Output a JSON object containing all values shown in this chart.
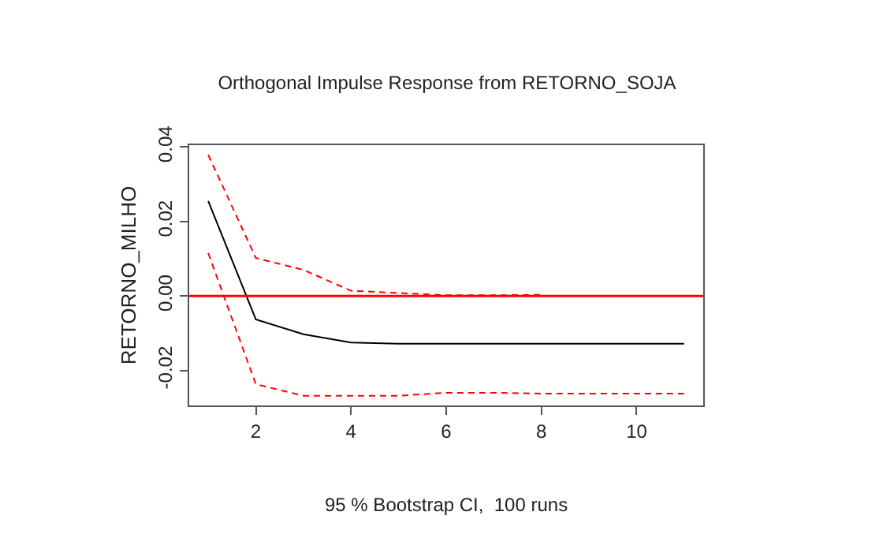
{
  "chart_data": {
    "type": "line",
    "title": "Orthogonal Impulse Response from RETORNO_SOJA",
    "ylabel": "RETORNO_MILHO",
    "annotations": [
      "95 % Bootstrap CI,  100 runs"
    ],
    "x": [
      1,
      2,
      3,
      4,
      5,
      6,
      7,
      8,
      9,
      10,
      11
    ],
    "series": [
      {
        "color": "#000000",
        "line_style": "solid",
        "values": [
          0.0255,
          -0.0063,
          -0.0103,
          -0.0125,
          -0.0128,
          -0.0128,
          -0.0128,
          -0.0128,
          -0.0128,
          -0.0128,
          -0.0128
        ]
      },
      {
        "color": "#ff0000",
        "line_style": "dashed",
        "values": [
          0.0379,
          0.0102,
          0.007,
          0.0014,
          0.0008,
          0.0002,
          0.0002,
          0.0003,
          null,
          null,
          null
        ]
      },
      {
        "color": "#ff0000",
        "line_style": "dashed",
        "values": [
          0.0115,
          -0.0237,
          -0.0268,
          -0.0268,
          -0.0268,
          -0.026,
          -0.026,
          -0.0262,
          -0.0262,
          -0.0262,
          -0.0262
        ]
      }
    ],
    "ref_lines": [
      {
        "axis": "y",
        "value": 0,
        "color": "#ff0000"
      }
    ],
    "xlim": [
      0.6,
      11.4
    ],
    "xticks": [
      2,
      4,
      6,
      8,
      10
    ],
    "ylim": [
      -0.0294,
      0.0405
    ],
    "yticks": [
      {
        "value": -0.02,
        "label": "-0.02"
      },
      {
        "value": 0,
        "label": "0.00"
      },
      {
        "value": 0.02,
        "label": "0.02"
      },
      {
        "value": 0.04,
        "label": "0.04"
      }
    ],
    "marker": "none"
  }
}
